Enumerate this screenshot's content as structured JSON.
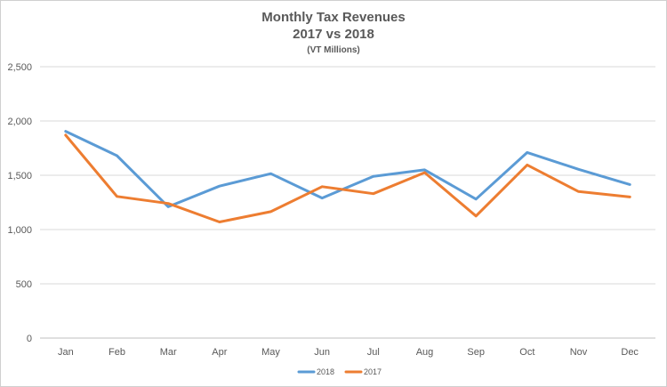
{
  "chart_data": {
    "type": "line",
    "title": "Monthly Tax Revenues",
    "subtitle": "2017 vs 2018",
    "unit_note": "(VT Millions)",
    "xlabel": "",
    "ylabel": "",
    "categories": [
      "Jan",
      "Feb",
      "Mar",
      "Apr",
      "May",
      "Jun",
      "Jul",
      "Aug",
      "Sep",
      "Oct",
      "Nov",
      "Dec"
    ],
    "y_ticks": [
      "0",
      "500",
      "1,000",
      "1,500",
      "2,000",
      "2,500"
    ],
    "ylim": [
      0,
      2500
    ],
    "grid": true,
    "legend_position": "bottom",
    "series": [
      {
        "name": "2018",
        "color": "#5B9BD5",
        "values": [
          1905,
          1680,
          1210,
          1400,
          1515,
          1290,
          1490,
          1550,
          1280,
          1710,
          1555,
          1415
        ]
      },
      {
        "name": "2017",
        "color": "#ED7D31",
        "values": [
          1870,
          1305,
          1240,
          1070,
          1165,
          1395,
          1330,
          1525,
          1125,
          1595,
          1350,
          1300
        ]
      }
    ]
  }
}
